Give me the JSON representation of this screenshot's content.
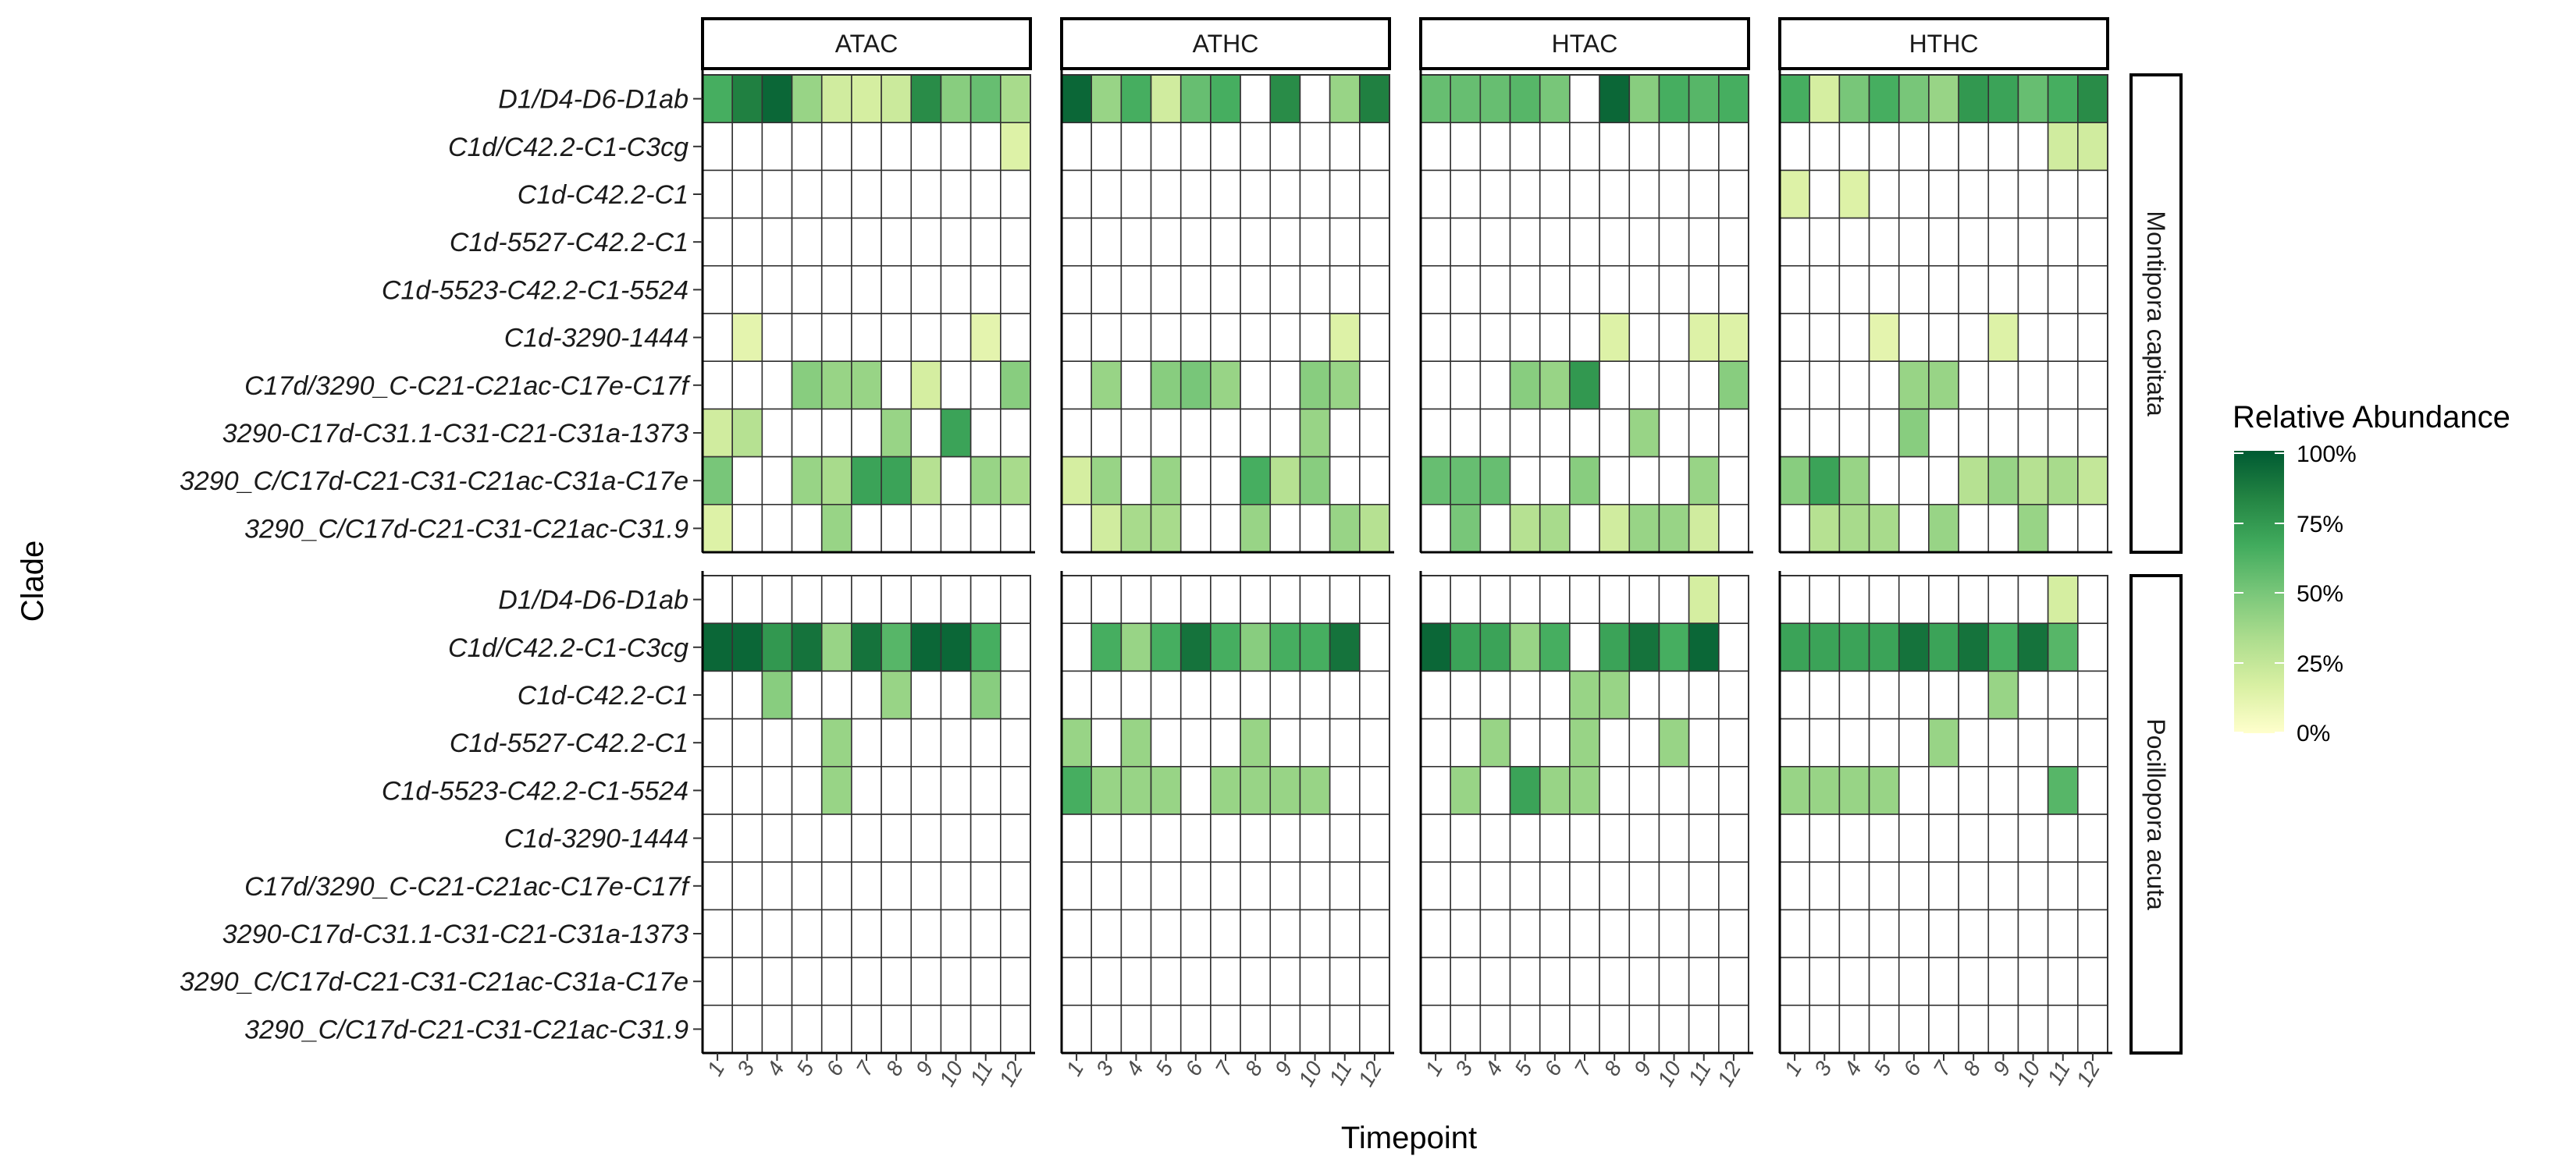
{
  "chart_data": {
    "type": "heatmap",
    "xlabel": "Timepoint",
    "ylabel": "Clade",
    "x_ticks": [
      "1",
      "3",
      "4",
      "5",
      "6",
      "7",
      "8",
      "9",
      "10",
      "11",
      "12"
    ],
    "panels": [
      "ATAC",
      "ATHC",
      "HTAC",
      "HTHC"
    ],
    "species": [
      "Montipora capitata",
      "Pocillopora acuta"
    ],
    "clades": [
      "D1/D4-D6-D1ab",
      "C1d/C42.2-C1-C3cg",
      "C1d-C42.2-C1",
      "C1d-5527-C42.2-C1",
      "C1d-5523-C42.2-C1-5524",
      "C1d-3290-1444",
      "C17d/3290_C-C21-C21ac-C17e-C17f",
      "3290-C17d-C31.1-C31-C21-C31a-1373",
      "3290_C/C17d-C21-C31-C21ac-C31a-C17e",
      "3290_C/C17d-C21-C31-C21ac-C31.9"
    ],
    "value_unit": "% relative abundance; null = no data (white)",
    "values": {
      "Montipora capitata": {
        "ATAC": [
          [
            65,
            85,
            95,
            40,
            20,
            18,
            22,
            80,
            45,
            55,
            35
          ],
          [
            null,
            null,
            null,
            null,
            null,
            null,
            null,
            null,
            null,
            null,
            15
          ],
          [
            null,
            null,
            null,
            null,
            null,
            null,
            null,
            null,
            null,
            null,
            null
          ],
          [
            null,
            null,
            null,
            null,
            null,
            null,
            null,
            null,
            null,
            null,
            null
          ],
          [
            null,
            null,
            null,
            null,
            null,
            null,
            null,
            null,
            null,
            null,
            null
          ],
          [
            null,
            12,
            null,
            null,
            null,
            null,
            null,
            null,
            null,
            12,
            null
          ],
          [
            null,
            null,
            null,
            45,
            40,
            40,
            null,
            18,
            null,
            null,
            45
          ],
          [
            20,
            30,
            null,
            null,
            null,
            null,
            40,
            null,
            70,
            null,
            null
          ],
          [
            50,
            null,
            null,
            40,
            35,
            70,
            70,
            30,
            null,
            40,
            35
          ],
          [
            15,
            null,
            null,
            null,
            40,
            null,
            null,
            null,
            null,
            null,
            null
          ]
        ],
        "ATHC": [
          [
            95,
            40,
            65,
            20,
            55,
            65,
            null,
            80,
            null,
            40,
            85
          ],
          [
            null,
            null,
            null,
            null,
            null,
            null,
            null,
            null,
            null,
            null,
            null
          ],
          [
            null,
            null,
            null,
            null,
            null,
            null,
            null,
            null,
            null,
            null,
            null
          ],
          [
            null,
            null,
            null,
            null,
            null,
            null,
            null,
            null,
            null,
            null,
            null
          ],
          [
            null,
            null,
            null,
            null,
            null,
            null,
            null,
            null,
            null,
            null,
            null
          ],
          [
            null,
            null,
            null,
            null,
            null,
            null,
            null,
            null,
            null,
            15,
            null
          ],
          [
            null,
            40,
            null,
            45,
            50,
            40,
            null,
            null,
            45,
            40,
            null
          ],
          [
            null,
            null,
            null,
            null,
            null,
            null,
            null,
            null,
            40,
            null,
            null
          ],
          [
            18,
            40,
            null,
            40,
            null,
            null,
            65,
            30,
            45,
            null,
            null
          ],
          [
            null,
            20,
            35,
            35,
            null,
            null,
            40,
            null,
            null,
            40,
            30
          ]
        ],
        "HTAC": [
          [
            55,
            55,
            55,
            60,
            50,
            null,
            95,
            45,
            65,
            60,
            65
          ],
          [
            null,
            null,
            null,
            null,
            null,
            null,
            null,
            null,
            null,
            null,
            null
          ],
          [
            null,
            null,
            null,
            null,
            null,
            null,
            null,
            null,
            null,
            null,
            null
          ],
          [
            null,
            null,
            null,
            null,
            null,
            null,
            null,
            null,
            null,
            null,
            null
          ],
          [
            null,
            null,
            null,
            null,
            null,
            null,
            null,
            null,
            null,
            null,
            null
          ],
          [
            null,
            null,
            null,
            null,
            null,
            null,
            15,
            null,
            null,
            15,
            15
          ],
          [
            null,
            null,
            null,
            45,
            40,
            75,
            null,
            null,
            null,
            null,
            45
          ],
          [
            null,
            null,
            null,
            null,
            null,
            null,
            null,
            40,
            null,
            null,
            null
          ],
          [
            55,
            55,
            55,
            null,
            null,
            45,
            null,
            null,
            null,
            40,
            null
          ],
          [
            null,
            50,
            null,
            30,
            35,
            null,
            20,
            40,
            40,
            20,
            null
          ]
        ],
        "HTHC": [
          [
            65,
            18,
            50,
            65,
            50,
            40,
            75,
            70,
            55,
            65,
            80
          ],
          [
            null,
            null,
            null,
            null,
            null,
            null,
            null,
            null,
            null,
            20,
            20
          ],
          [
            15,
            null,
            15,
            null,
            null,
            null,
            null,
            null,
            null,
            null,
            null
          ],
          [
            null,
            null,
            null,
            null,
            null,
            null,
            null,
            null,
            null,
            null,
            null
          ],
          [
            null,
            null,
            null,
            null,
            null,
            null,
            null,
            null,
            null,
            null,
            null
          ],
          [
            null,
            null,
            null,
            12,
            null,
            null,
            null,
            15,
            null,
            null,
            null
          ],
          [
            null,
            null,
            null,
            null,
            40,
            40,
            null,
            null,
            null,
            null,
            null
          ],
          [
            null,
            null,
            null,
            null,
            45,
            null,
            null,
            null,
            null,
            null,
            null
          ],
          [
            45,
            70,
            40,
            null,
            null,
            null,
            30,
            40,
            30,
            35,
            25
          ],
          [
            null,
            30,
            35,
            35,
            null,
            40,
            null,
            null,
            40,
            null,
            null
          ]
        ]
      },
      "Pocillopora acuta": {
        "ATAC": [
          [
            null,
            null,
            null,
            null,
            null,
            null,
            null,
            null,
            null,
            null,
            null
          ],
          [
            95,
            95,
            75,
            90,
            40,
            90,
            60,
            95,
            95,
            65,
            null
          ],
          [
            null,
            null,
            45,
            null,
            null,
            null,
            40,
            null,
            null,
            45,
            null
          ],
          [
            null,
            null,
            null,
            null,
            40,
            null,
            null,
            null,
            null,
            null,
            null
          ],
          [
            null,
            null,
            null,
            null,
            40,
            null,
            null,
            null,
            null,
            null,
            null
          ],
          [
            null,
            null,
            null,
            null,
            null,
            null,
            null,
            null,
            null,
            null,
            null
          ],
          [
            null,
            null,
            null,
            null,
            null,
            null,
            null,
            null,
            null,
            null,
            null
          ],
          [
            null,
            null,
            null,
            null,
            null,
            null,
            null,
            null,
            null,
            null,
            null
          ],
          [
            null,
            null,
            null,
            null,
            null,
            null,
            null,
            null,
            null,
            null,
            null
          ],
          [
            null,
            null,
            null,
            null,
            null,
            null,
            null,
            null,
            null,
            null,
            null
          ]
        ],
        "ATHC": [
          [
            null,
            null,
            null,
            null,
            null,
            null,
            null,
            null,
            null,
            null,
            null
          ],
          [
            null,
            65,
            40,
            65,
            90,
            65,
            45,
            65,
            65,
            90,
            null
          ],
          [
            null,
            null,
            null,
            null,
            null,
            null,
            null,
            null,
            null,
            null,
            null
          ],
          [
            40,
            null,
            40,
            null,
            null,
            null,
            40,
            null,
            null,
            null,
            null
          ],
          [
            65,
            40,
            40,
            40,
            null,
            40,
            40,
            40,
            40,
            null,
            null
          ],
          [
            null,
            null,
            null,
            null,
            null,
            null,
            null,
            null,
            null,
            null,
            null
          ],
          [
            null,
            null,
            null,
            null,
            null,
            null,
            null,
            null,
            null,
            null,
            null
          ],
          [
            null,
            null,
            null,
            null,
            null,
            null,
            null,
            null,
            null,
            null,
            null
          ],
          [
            null,
            null,
            null,
            null,
            null,
            null,
            null,
            null,
            null,
            null,
            null
          ],
          [
            null,
            null,
            null,
            null,
            null,
            null,
            null,
            null,
            null,
            null,
            null
          ]
        ],
        "HTAC": [
          [
            null,
            null,
            null,
            null,
            null,
            null,
            null,
            null,
            null,
            18,
            null
          ],
          [
            95,
            70,
            70,
            40,
            65,
            null,
            70,
            90,
            65,
            95,
            null
          ],
          [
            null,
            null,
            null,
            null,
            null,
            40,
            40,
            null,
            null,
            null,
            null
          ],
          [
            null,
            null,
            40,
            null,
            null,
            40,
            null,
            null,
            40,
            null,
            null
          ],
          [
            null,
            40,
            null,
            70,
            40,
            40,
            null,
            null,
            null,
            null,
            null
          ],
          [
            null,
            null,
            null,
            null,
            null,
            null,
            null,
            null,
            null,
            null,
            null
          ],
          [
            null,
            null,
            null,
            null,
            null,
            null,
            null,
            null,
            null,
            null,
            null
          ],
          [
            null,
            null,
            null,
            null,
            null,
            null,
            null,
            null,
            null,
            null,
            null
          ],
          [
            null,
            null,
            null,
            null,
            null,
            null,
            null,
            null,
            null,
            null,
            null
          ],
          [
            null,
            null,
            null,
            null,
            null,
            null,
            null,
            null,
            null,
            null,
            null
          ]
        ],
        "HTHC": [
          [
            null,
            null,
            null,
            null,
            null,
            null,
            null,
            null,
            null,
            18,
            null
          ],
          [
            70,
            70,
            70,
            70,
            90,
            70,
            90,
            65,
            90,
            60,
            null
          ],
          [
            null,
            null,
            null,
            null,
            null,
            null,
            null,
            40,
            null,
            null,
            null
          ],
          [
            null,
            null,
            null,
            null,
            null,
            40,
            null,
            null,
            null,
            null,
            null
          ],
          [
            40,
            40,
            40,
            40,
            null,
            null,
            null,
            null,
            null,
            60,
            null
          ],
          [
            null,
            null,
            null,
            null,
            null,
            null,
            null,
            null,
            null,
            null,
            null
          ],
          [
            null,
            null,
            null,
            null,
            null,
            null,
            null,
            null,
            null,
            null,
            null
          ],
          [
            null,
            null,
            null,
            null,
            null,
            null,
            null,
            null,
            null,
            null,
            null
          ],
          [
            null,
            null,
            null,
            null,
            null,
            null,
            null,
            null,
            null,
            null,
            null
          ],
          [
            null,
            null,
            null,
            null,
            null,
            null,
            null,
            null,
            null,
            null,
            null
          ]
        ]
      }
    },
    "legend": {
      "title": "Relative Abundance",
      "labels": [
        "100%",
        "75%",
        "50%",
        "25%",
        "0%"
      ],
      "colors": [
        "#ffffcc",
        "#d9f0a3",
        "#addd8e",
        "#78c679",
        "#41ab5d",
        "#238443",
        "#005a32"
      ]
    }
  }
}
